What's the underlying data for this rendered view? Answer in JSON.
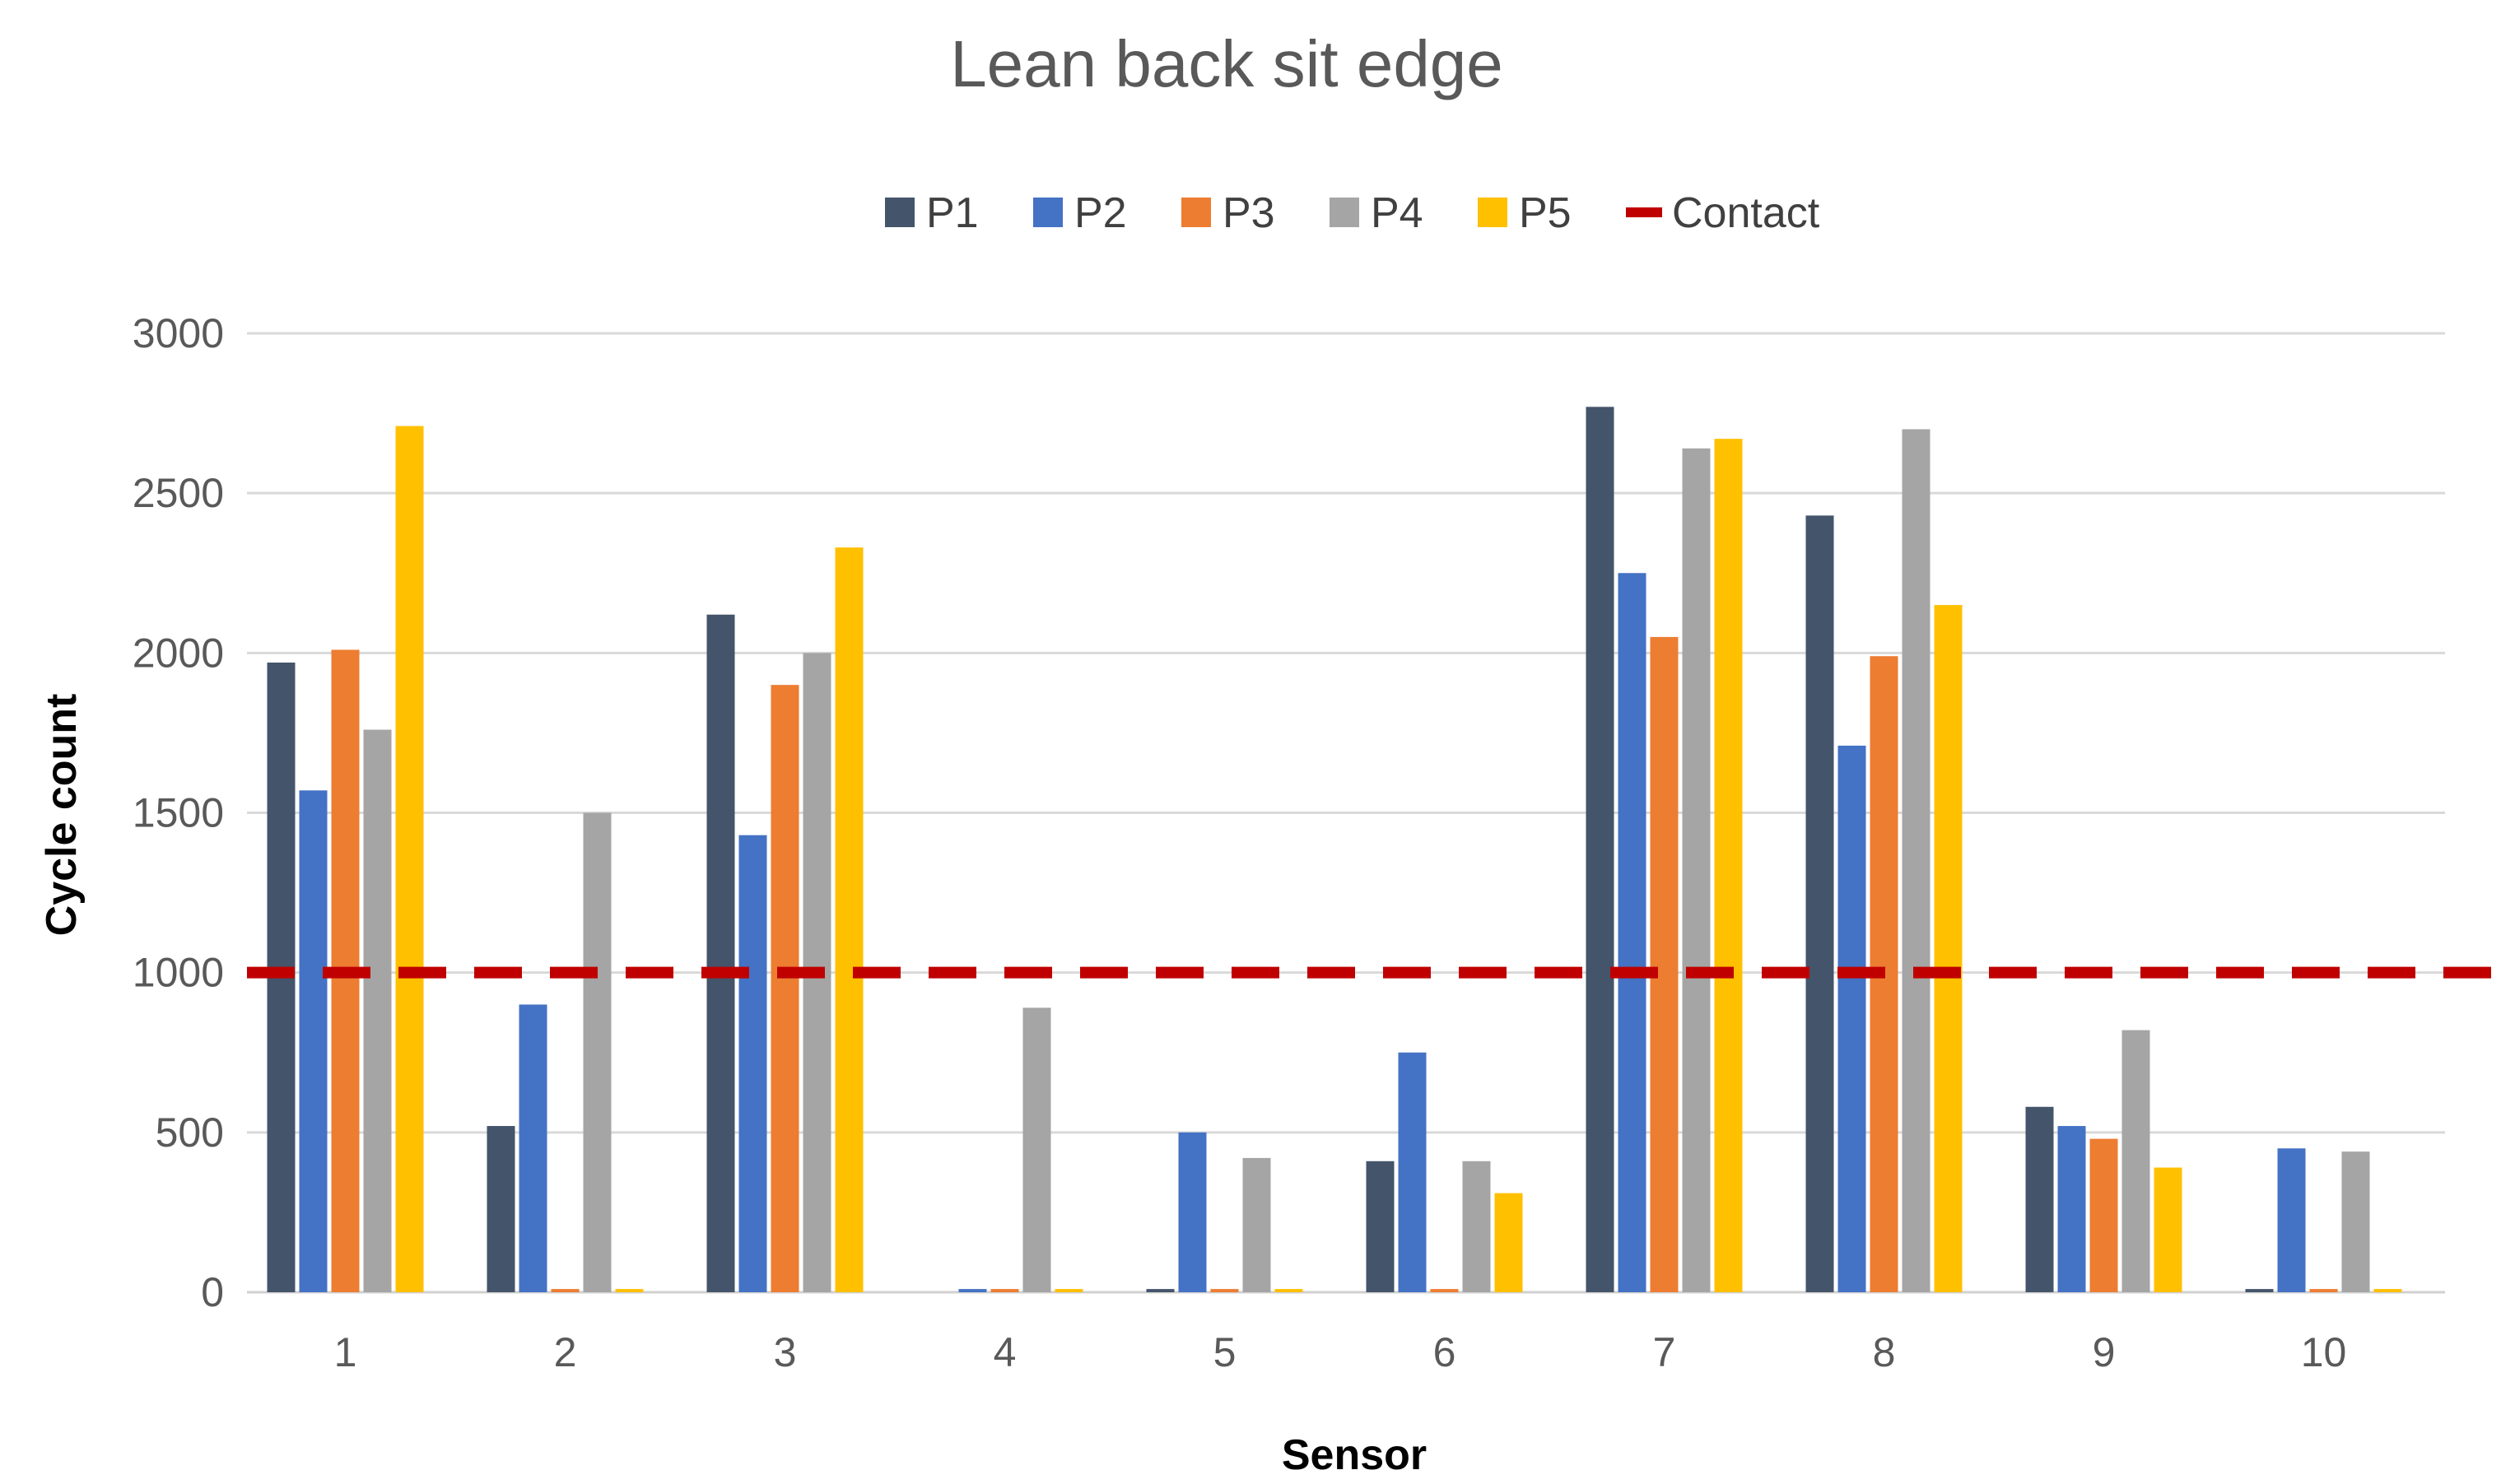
{
  "chart_data": {
    "type": "bar",
    "title": "Lean back sit edge",
    "xlabel": "Sensor",
    "ylabel": "Cycle count",
    "categories": [
      "1",
      "2",
      "3",
      "4",
      "5",
      "6",
      "7",
      "8",
      "9",
      "10"
    ],
    "ylim": [
      0,
      3000
    ],
    "yticks": [
      0,
      500,
      1000,
      1500,
      2000,
      2500,
      3000
    ],
    "ytick_labels": [
      "0",
      "500",
      "1000",
      "1500",
      "2000",
      "2500",
      "3000"
    ],
    "grid": true,
    "legend_position": "top-center",
    "series": [
      {
        "name": "P1",
        "color": "#44546a",
        "values": [
          1970,
          520,
          2120,
          0,
          10,
          410,
          2770,
          2430,
          580,
          10
        ]
      },
      {
        "name": "P2",
        "color": "#4472c4",
        "values": [
          1570,
          900,
          1430,
          10,
          500,
          750,
          2250,
          1710,
          520,
          450
        ]
      },
      {
        "name": "P3",
        "color": "#ed7d31",
        "values": [
          2010,
          10,
          1900,
          10,
          10,
          10,
          2050,
          1990,
          480,
          10
        ]
      },
      {
        "name": "P4",
        "color": "#a5a5a5",
        "values": [
          1760,
          1500,
          2000,
          890,
          420,
          410,
          2640,
          2700,
          820,
          440
        ]
      },
      {
        "name": "P5",
        "color": "#ffc000",
        "values": [
          2710,
          10,
          2330,
          10,
          10,
          310,
          2670,
          2150,
          390,
          10
        ]
      }
    ],
    "reference_line": {
      "name": "Contact",
      "value": 1000,
      "color": "#c00000",
      "style": "dashed"
    }
  }
}
